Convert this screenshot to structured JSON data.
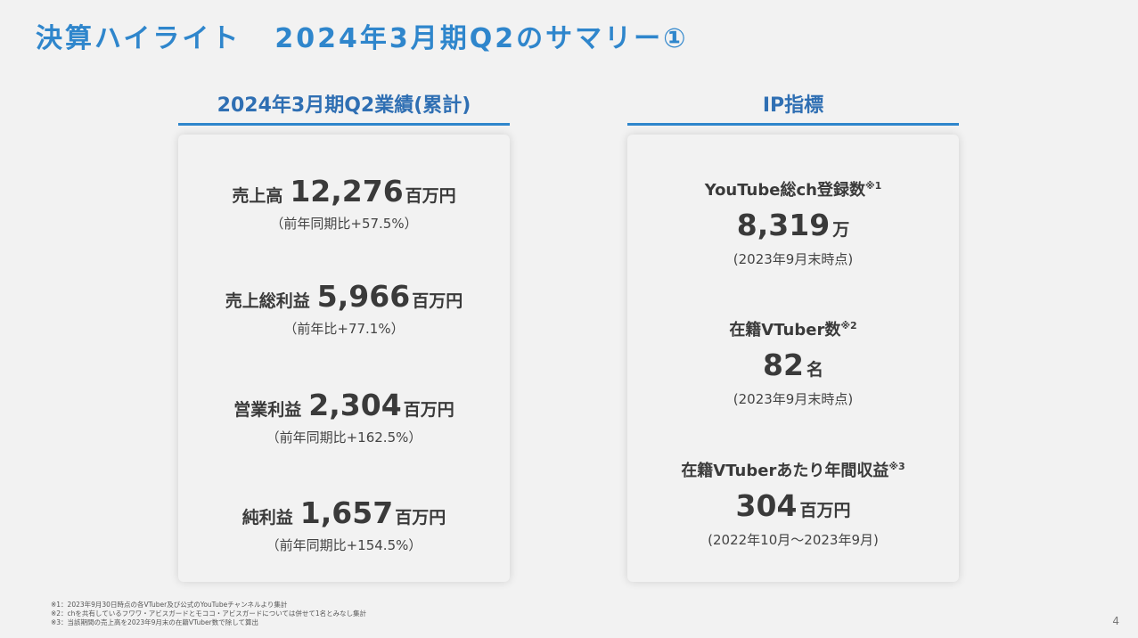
{
  "title": {
    "part1": "決算ハイライト",
    "part2": "2024年3月期Q2のサマリー①"
  },
  "left": {
    "header": "2024年3月期Q2業績(累計)",
    "metrics": [
      {
        "label": "売上高",
        "value": "12,276",
        "unit": "百万円",
        "sub": "（前年同期比+57.5%）"
      },
      {
        "label": "売上総利益",
        "value": "5,966",
        "unit": "百万円",
        "sub": "（前年比+77.1%）"
      },
      {
        "label": "営業利益",
        "value": "2,304",
        "unit": "百万円",
        "sub": "（前年同期比+162.5%）"
      },
      {
        "label": "純利益",
        "value": "1,657",
        "unit": "百万円",
        "sub": "（前年同期比+154.5%）"
      }
    ]
  },
  "right": {
    "header": "IP指標",
    "items": [
      {
        "title": "YouTube総ch登録数",
        "note": "※1",
        "value": "8,319",
        "unit": "万",
        "sub": "(2023年9月末時点)"
      },
      {
        "title": "在籍VTuber数",
        "note": "※2",
        "value": "82",
        "unit": "名",
        "sub": "(2023年9月末時点)"
      },
      {
        "title": "在籍VTuberあたり年間収益",
        "note": "※3",
        "value": "304",
        "unit": "百万円",
        "sub": "(2022年10月～2023年9月)"
      }
    ]
  },
  "footnotes": [
    "※1：2023年9月30日時点の各VTuber及び公式のYouTubeチャンネルより集計",
    "※2：chを共有しているフワワ・アビスガードとモココ・アビスガードについては併せて1名とみなし集計",
    "※3：当該期間の売上高を2023年9月末の在籍VTuber数で除して算出"
  ],
  "page_number": "4"
}
